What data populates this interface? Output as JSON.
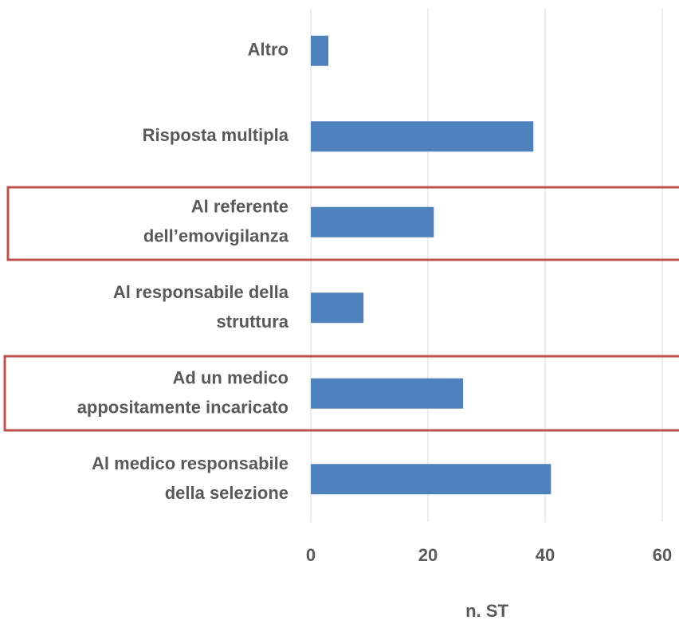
{
  "chart_data": {
    "type": "bar",
    "orientation": "horizontal",
    "categories": [
      "Altro",
      "Risposta multipla",
      "Al referente\ndell’emovigilanza",
      "Al responsabile della\nstruttura",
      "Ad un medico\nappositamente incaricato",
      "Al medico responsabile\ndella selezione"
    ],
    "values": [
      3,
      38,
      21,
      9,
      26,
      41
    ],
    "color": "#4f81bd",
    "xlabel": "n. ST",
    "xlim": [
      0,
      60
    ],
    "xticks": [
      0,
      20,
      40,
      60
    ],
    "grid": true
  }
}
